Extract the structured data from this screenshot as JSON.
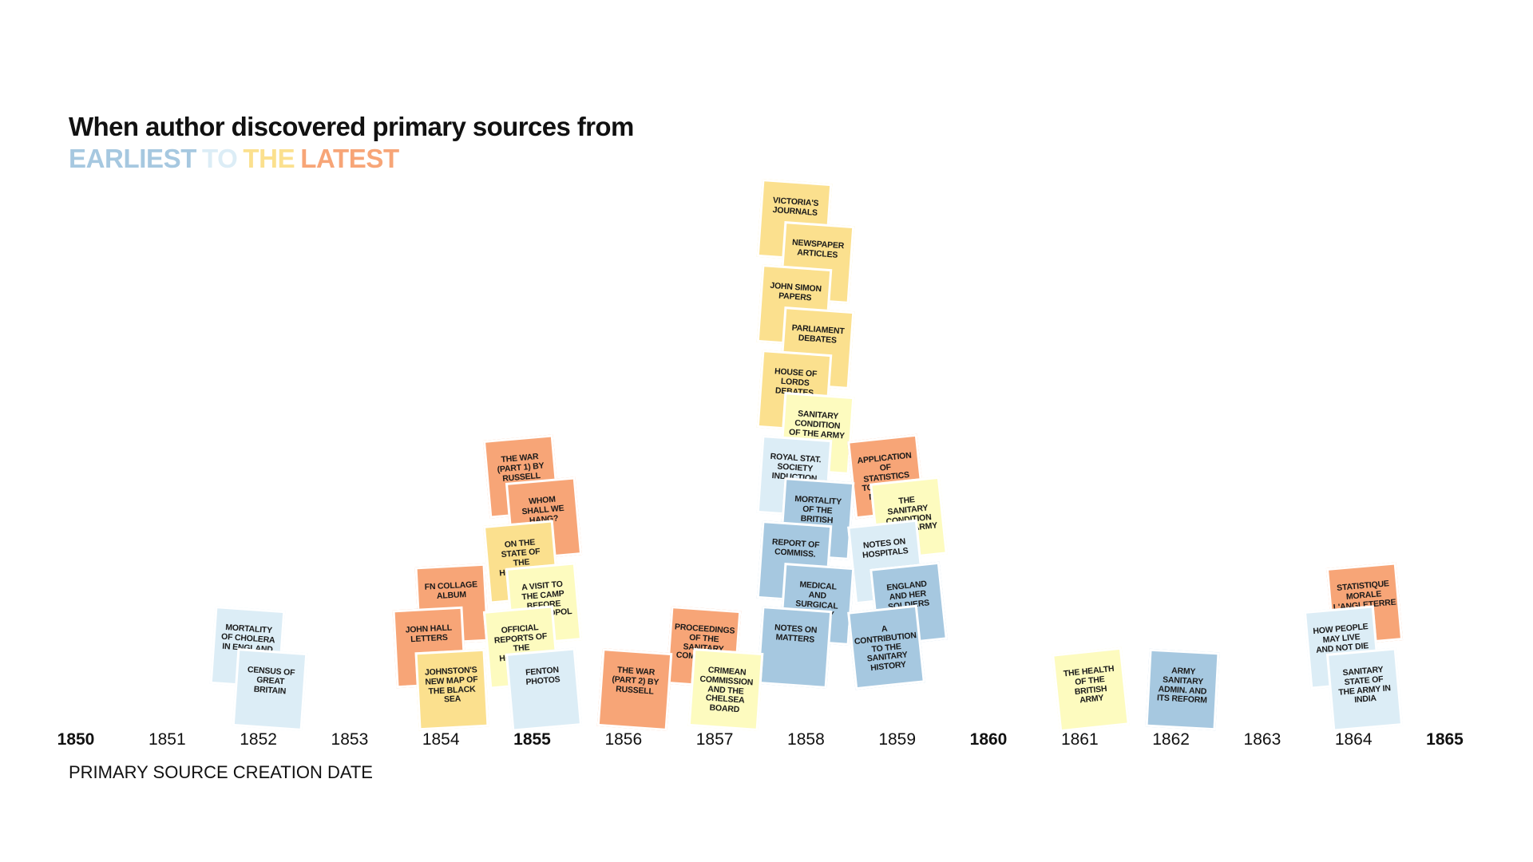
{
  "chart_data": {
    "type": "scatter",
    "title": "When author discovered primary sources from",
    "subtitle": [
      {
        "word": "EARLIEST",
        "color": "#a6c8e0"
      },
      {
        "word": "TO",
        "color": "#dcedf6"
      },
      {
        "word": "THE",
        "color": "#fbe08e"
      },
      {
        "word": "LATEST",
        "color": "#f7a577"
      }
    ],
    "xlabel": "PRIMARY SOURCE CREATION DATE",
    "xlim": [
      1850,
      1865
    ],
    "ticks": [
      {
        "label": "1850",
        "major": true
      },
      {
        "label": "1851",
        "major": false
      },
      {
        "label": "1852",
        "major": false
      },
      {
        "label": "1853",
        "major": false
      },
      {
        "label": "1854",
        "major": false
      },
      {
        "label": "1855",
        "major": true
      },
      {
        "label": "1856",
        "major": false
      },
      {
        "label": "1857",
        "major": false
      },
      {
        "label": "1858",
        "major": false
      },
      {
        "label": "1859",
        "major": false
      },
      {
        "label": "1860",
        "major": true
      },
      {
        "label": "1861",
        "major": false
      },
      {
        "label": "1862",
        "major": false
      },
      {
        "label": "1863",
        "major": false
      },
      {
        "label": "1864",
        "major": false
      },
      {
        "label": "1865",
        "major": true
      }
    ],
    "colors": {
      "earliest": "#a6c8e0",
      "early": "#dcedf6",
      "mid": "#fdfbbf",
      "late": "#fbe08e",
      "latest": "#f7a577"
    },
    "notes": [
      {
        "label": "Mortality of cholera in England",
        "year": 1852,
        "order": 1,
        "discovery": "early"
      },
      {
        "label": "Census of Great Britain",
        "year": 1852,
        "order": 0,
        "discovery": "early"
      },
      {
        "label": "FN Collage Album",
        "year": 1854,
        "order": 2,
        "discovery": "latest"
      },
      {
        "label": "John Hall Letters",
        "year": 1854,
        "order": 1,
        "discovery": "latest"
      },
      {
        "label": "Johnston's new map of the Black Sea",
        "year": 1854,
        "order": 0,
        "discovery": "late"
      },
      {
        "label": "The War (Part 1) by Russell",
        "year": 1855,
        "order": 5,
        "discovery": "latest"
      },
      {
        "label": "Whom shall we hang?",
        "year": 1855,
        "order": 4,
        "discovery": "latest"
      },
      {
        "label": "On the state of the hospitals",
        "year": 1855,
        "order": 3,
        "discovery": "late"
      },
      {
        "label": "A visit to the camp before Sevastopol",
        "year": 1855,
        "order": 2,
        "discovery": "mid"
      },
      {
        "label": "Official reports of the hospitals",
        "year": 1855,
        "order": 1,
        "discovery": "mid"
      },
      {
        "label": "Fenton Photos",
        "year": 1855,
        "order": 0,
        "discovery": "early"
      },
      {
        "label": "The War (Part 2) by Russell",
        "year": 1856,
        "order": 0,
        "discovery": "latest"
      },
      {
        "label": "Proceedings of the Sanitary Commission",
        "year": 1857,
        "order": 1,
        "discovery": "latest"
      },
      {
        "label": "Crimean Commission and the Chelsea Board",
        "year": 1857,
        "order": 0,
        "discovery": "mid"
      },
      {
        "label": "Victoria's Journals",
        "year": 1858,
        "order": 11,
        "discovery": "late"
      },
      {
        "label": "Newspaper Articles",
        "year": 1858,
        "order": 10,
        "discovery": "late"
      },
      {
        "label": "John Simon Papers",
        "year": 1858,
        "order": 9,
        "discovery": "late"
      },
      {
        "label": "Parliament Debates",
        "year": 1858,
        "order": 8,
        "discovery": "late"
      },
      {
        "label": "House of Lords Debates",
        "year": 1858,
        "order": 7,
        "discovery": "late"
      },
      {
        "label": "Sanitary condition of the army",
        "year": 1858,
        "order": 6,
        "discovery": "mid"
      },
      {
        "label": "Royal Stat. Society Induction",
        "year": 1858,
        "order": 5,
        "discovery": "early"
      },
      {
        "label": "Mortality of the British Army",
        "year": 1858,
        "order": 4,
        "discovery": "earliest"
      },
      {
        "label": "Report of Commiss.",
        "year": 1858,
        "order": 3,
        "discovery": "earliest"
      },
      {
        "label": "Medical and Surgical History",
        "year": 1858,
        "order": 2,
        "discovery": "earliest"
      },
      {
        "label": "Notes on Matters",
        "year": 1858,
        "order": 1,
        "discovery": "earliest"
      },
      {
        "label": "Application of statistics to military matters",
        "year": 1859,
        "order": 5,
        "discovery": "latest"
      },
      {
        "label": "The Sanitary Condition of the Army",
        "year": 1859,
        "order": 4,
        "discovery": "mid"
      },
      {
        "label": "Notes on Hospitals",
        "year": 1859,
        "order": 3,
        "discovery": "early"
      },
      {
        "label": "England and her soldiers",
        "year": 1859,
        "order": 2,
        "discovery": "earliest"
      },
      {
        "label": "A contribution to the sanitary history",
        "year": 1859,
        "order": 1,
        "discovery": "earliest"
      },
      {
        "label": "The health of the British army",
        "year": 1861,
        "order": 0,
        "discovery": "mid"
      },
      {
        "label": "Army Sanitary Admin. and its reform",
        "year": 1862,
        "order": 0,
        "discovery": "earliest"
      },
      {
        "label": "Statistique morale l'Angleterre",
        "year": 1864,
        "order": 2,
        "discovery": "latest"
      },
      {
        "label": "How people may live and not die in India",
        "year": 1864,
        "order": 1,
        "discovery": "early"
      },
      {
        "label": "Sanitary state of the army in India",
        "year": 1864,
        "order": 0,
        "discovery": "early"
      }
    ]
  }
}
